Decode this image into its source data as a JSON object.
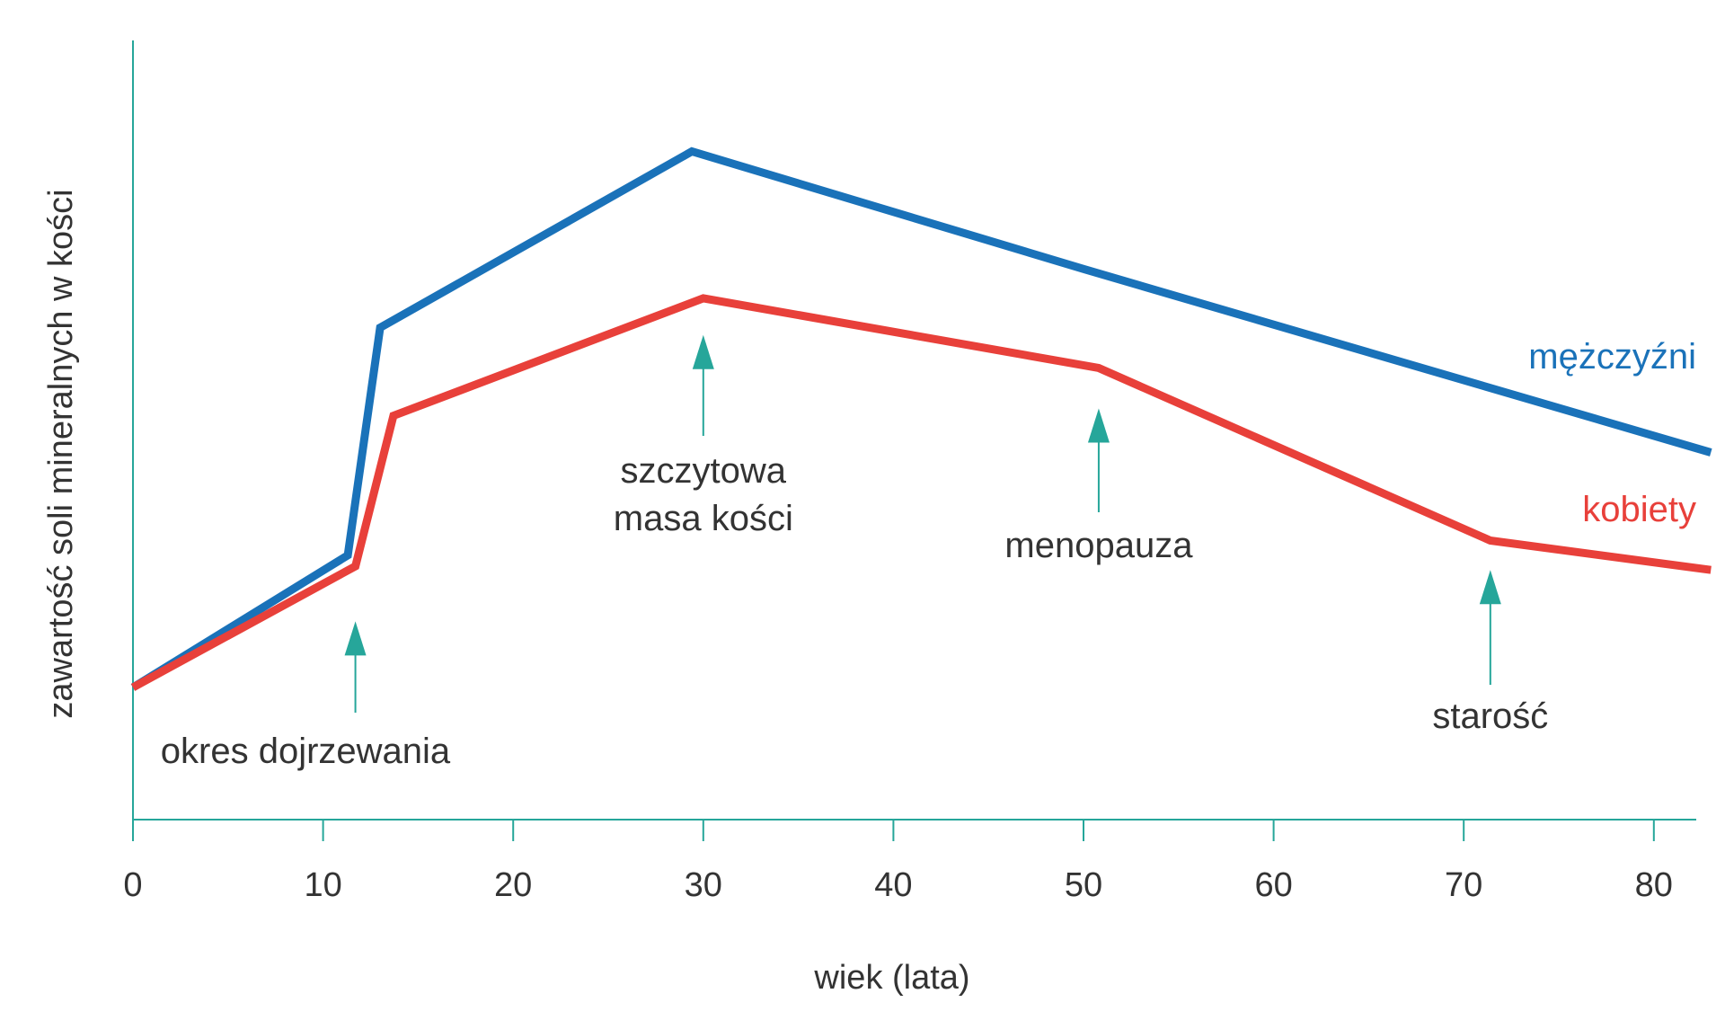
{
  "chart_data": {
    "type": "line",
    "xlabel": "wiek (lata)",
    "ylabel": "zawartość soli mineralnych w kości",
    "xlim": [
      0,
      83
    ],
    "ylim": [
      0,
      100
    ],
    "x_ticks": [
      0,
      10,
      20,
      30,
      40,
      50,
      60,
      70,
      80
    ],
    "y_ticks_shown": false,
    "grid": false,
    "legend": "inline labels at right end of lines",
    "axis_color": "#26a69a",
    "series": [
      {
        "name": "mężczyźni",
        "color": "#1a72b9",
        "points": [
          [
            0,
            18
          ],
          [
            11.3,
            36
          ],
          [
            13,
            67
          ],
          [
            29.4,
            91
          ],
          [
            50,
            75
          ],
          [
            83,
            50
          ]
        ]
      },
      {
        "name": "kobiety",
        "color": "#e8403a",
        "points": [
          [
            0,
            18
          ],
          [
            11.7,
            34.5
          ],
          [
            13.7,
            55
          ],
          [
            30,
            71
          ],
          [
            50.8,
            61.5
          ],
          [
            71.4,
            38
          ],
          [
            83,
            34
          ]
        ]
      }
    ],
    "annotations": [
      {
        "id": "okres",
        "lines": [
          "okres dojrzewania"
        ],
        "x": 11.7,
        "arrow_tip_y": 27
      },
      {
        "id": "szczyt",
        "lines": [
          "szczytowa",
          "masa kości"
        ],
        "x": 30,
        "arrow_tip_y": 66
      },
      {
        "id": "menopauza",
        "lines": [
          "menopauza"
        ],
        "x": 50.8,
        "arrow_tip_y": 56
      },
      {
        "id": "starosc",
        "lines": [
          "starość"
        ],
        "x": 71.4,
        "arrow_tip_y": 34
      }
    ],
    "arrow_color": "#26a69a"
  }
}
